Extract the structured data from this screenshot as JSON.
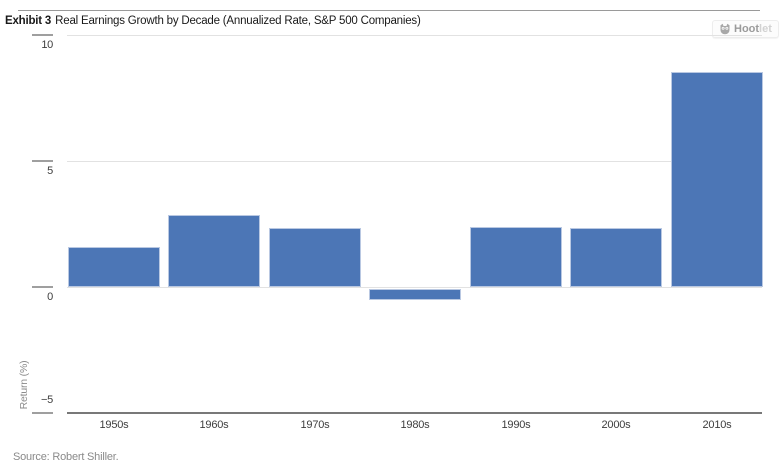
{
  "header": {
    "exhibit_label": "Exhibit 3",
    "title": "Real Earnings Growth by Decade (Annualized Rate, S&P 500 Companies)",
    "hootlet": {
      "brand_primary": "Hoot",
      "brand_secondary": "let"
    }
  },
  "chart_data": {
    "type": "bar",
    "title": "Real Earnings Growth by Decade (Annualized Rate, S&P 500 Companies)",
    "categories": [
      "1950s",
      "1960s",
      "1970s",
      "1980s",
      "1990s",
      "2000s",
      "2010s"
    ],
    "values": [
      1.6,
      2.85,
      2.35,
      -0.45,
      2.4,
      2.35,
      8.55
    ],
    "xlabel": "",
    "ylabel": "Return (%)",
    "ylim": [
      -5,
      10
    ],
    "y_ticks": [
      10,
      5,
      0,
      -5
    ],
    "y_tick_labels": [
      "10",
      "5",
      "0",
      "−5"
    ],
    "grid": true,
    "legend": "none",
    "bar_color": "#4c76b6",
    "bar_border_color": "#b9c8e2",
    "gridline_color": "#e2e2e2"
  },
  "footer": {
    "source": "Source: Robert Shiller."
  }
}
